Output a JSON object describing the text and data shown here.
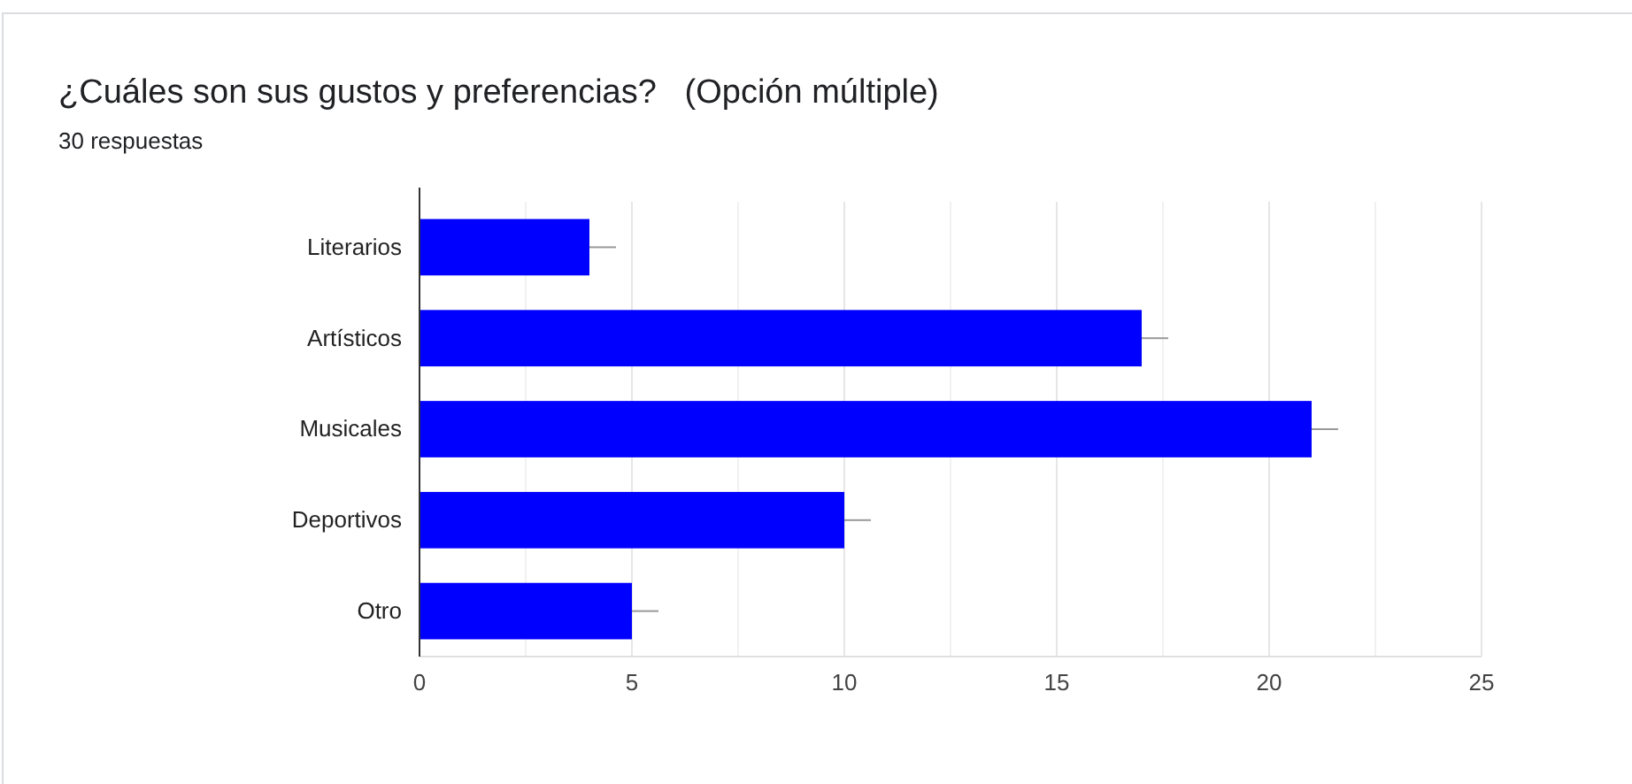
{
  "chart_data": {
    "type": "bar",
    "orientation": "horizontal",
    "title": "¿Cuáles son sus gustos y preferencias?   (Opción múltiple)",
    "subtitle": "30 respuestas",
    "categories": [
      "Literarios",
      "Artísticos",
      "Musicales",
      "Deportivos",
      "Otro"
    ],
    "values": [
      4,
      17,
      21,
      10,
      5
    ],
    "color": "#0000ff",
    "xlim": [
      0,
      25
    ],
    "xticks": [
      0,
      {
        "value": 2.5,
        "label": null
      },
      5,
      {
        "value": 7.5,
        "label": null
      },
      10,
      {
        "value": 12.5,
        "label": null
      },
      15,
      {
        "value": 17.5,
        "label": null
      },
      20,
      {
        "value": 22.5,
        "label": null
      },
      25
    ],
    "grid": true
  }
}
